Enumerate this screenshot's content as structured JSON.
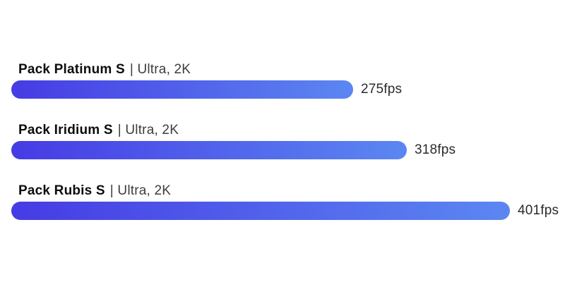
{
  "chart_data": {
    "type": "bar",
    "orientation": "horizontal",
    "title": "",
    "xlabel": "",
    "ylabel": "",
    "axes_visible": false,
    "grid": false,
    "legend": false,
    "value_range_implied": [
      0,
      401
    ],
    "categories": [
      "Pack Platinum S",
      "Pack Iridium S",
      "Pack Rubis S"
    ],
    "category_suffix": "| Ultra, 2K",
    "series": [
      {
        "name": "fps",
        "values": [
          275,
          318,
          401
        ]
      }
    ],
    "value_labels": [
      "275fps",
      "318fps",
      "401fps"
    ]
  },
  "rows": [
    {
      "name": "Pack Platinum S",
      "config": "| Ultra, 2K",
      "fps": 275,
      "value_label": "275fps"
    },
    {
      "name": "Pack Iridium S",
      "config": "| Ultra, 2K",
      "fps": 318,
      "value_label": "318fps"
    },
    {
      "name": "Pack Rubis S",
      "config": "| Ultra, 2K",
      "fps": 401,
      "value_label": "401fps"
    }
  ],
  "colors": {
    "background": "#ffffff",
    "bar_gradient_start": "#463be4",
    "bar_gradient_end": "#5b87f2",
    "name_text": "#0d0d0d",
    "config_text": "#3d3d3d",
    "value_text": "#2b2b2b"
  }
}
